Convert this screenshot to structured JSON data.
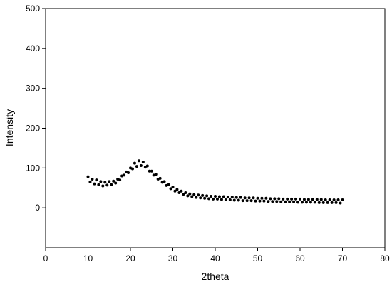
{
  "chart_data": {
    "type": "scatter",
    "x_label": "2theta",
    "y_label": "Intensity",
    "xlim": [
      0,
      80
    ],
    "xticks": [
      0,
      10,
      20,
      30,
      40,
      50,
      60,
      70,
      80
    ],
    "ylim": [
      -100,
      500
    ],
    "yticks": [
      0,
      100,
      200,
      300,
      400,
      500
    ],
    "series": [
      {
        "color": "#000000",
        "x": [
          10,
          10.5,
          11,
          11.5,
          12,
          12.5,
          13,
          13.5,
          14,
          14.5,
          15,
          15.5,
          16,
          16.5,
          17,
          17.5,
          18,
          18.5,
          19,
          19.5,
          20,
          20.5,
          21,
          21.5,
          22,
          22.5,
          23,
          23.5,
          24,
          24.5,
          25,
          25.5,
          26,
          26.5,
          27,
          27.5,
          28,
          28.5,
          29,
          29.5,
          30,
          30.5,
          31,
          31.5,
          32,
          32.5,
          33,
          33.5,
          34,
          34.5,
          35,
          35.5,
          36,
          36.5,
          37,
          37.5,
          38,
          38.5,
          39,
          39.5,
          40,
          40.5,
          41,
          41.5,
          42,
          42.5,
          43,
          43.5,
          44,
          44.5,
          45,
          45.5,
          46,
          46.5,
          47,
          47.5,
          48,
          48.5,
          49,
          49.5,
          50,
          50.5,
          51,
          51.5,
          52,
          52.5,
          53,
          53.5,
          54,
          54.5,
          55,
          55.5,
          56,
          56.5,
          57,
          57.5,
          58,
          58.5,
          59,
          59.5,
          60,
          60.5,
          61,
          61.5,
          62,
          62.5,
          63,
          63.5,
          64,
          64.5,
          65,
          65.5,
          66,
          66.5,
          67,
          67.5,
          68,
          68.5,
          69,
          69.5,
          70
        ],
        "values": [
          78,
          65,
          72,
          60,
          70,
          58,
          66,
          55,
          64,
          57,
          66,
          58,
          67,
          62,
          72,
          70,
          80,
          82,
          90,
          88,
          100,
          98,
          112,
          104,
          118,
          106,
          115,
          102,
          105,
          92,
          92,
          82,
          84,
          72,
          74,
          64,
          66,
          56,
          58,
          48,
          52,
          42,
          46,
          38,
          42,
          34,
          38,
          30,
          35,
          28,
          33,
          26,
          32,
          25,
          31,
          24,
          30,
          23,
          29,
          22,
          29,
          22,
          28,
          21,
          28,
          20,
          27,
          20,
          27,
          19,
          26,
          19,
          26,
          18,
          25,
          18,
          25,
          18,
          25,
          17,
          24,
          17,
          24,
          17,
          24,
          16,
          23,
          16,
          23,
          16,
          23,
          15,
          22,
          15,
          22,
          15,
          22,
          15,
          22,
          14,
          22,
          14,
          21,
          14,
          21,
          14,
          21,
          14,
          21,
          13,
          21,
          13,
          20,
          13,
          20,
          13,
          20,
          13,
          20,
          12,
          20
        ]
      }
    ]
  }
}
